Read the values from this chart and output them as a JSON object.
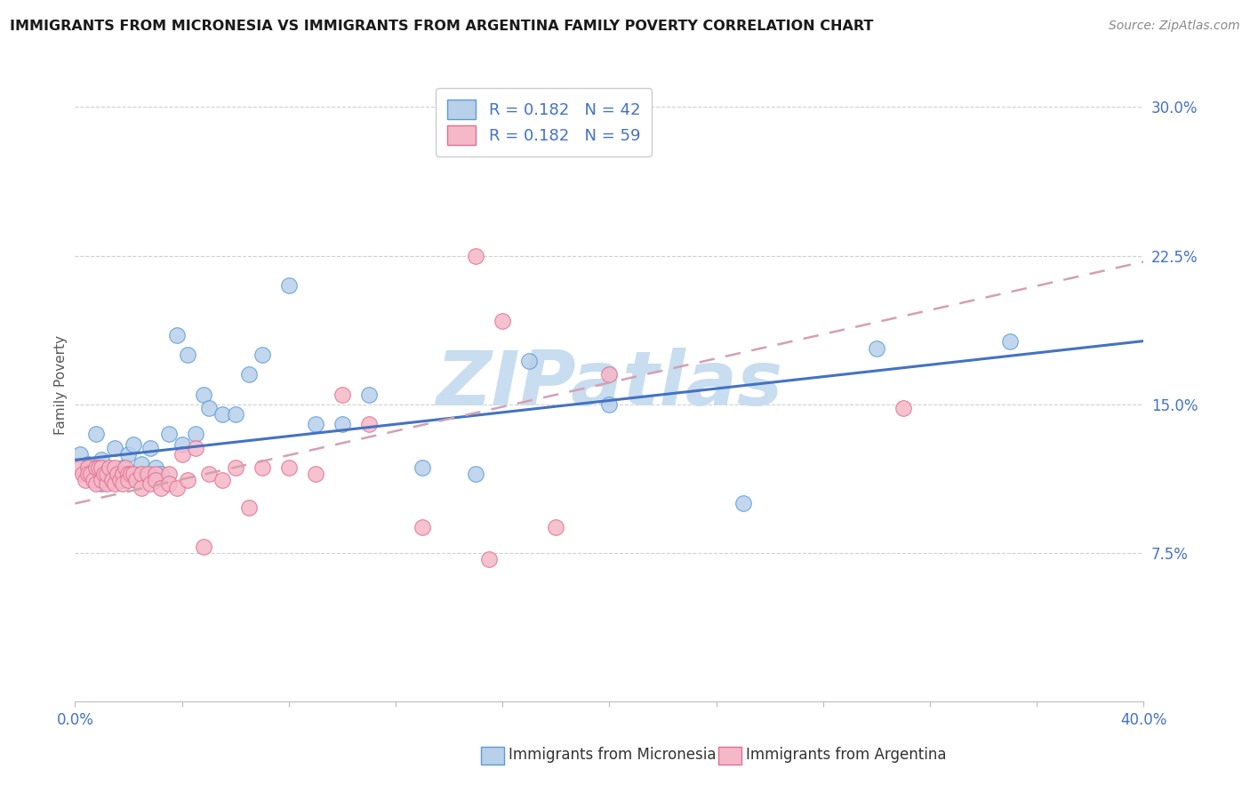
{
  "title": "IMMIGRANTS FROM MICRONESIA VS IMMIGRANTS FROM ARGENTINA FAMILY POVERTY CORRELATION CHART",
  "source": "Source: ZipAtlas.com",
  "ylabel": "Family Poverty",
  "xlim": [
    0.0,
    0.4
  ],
  "ylim": [
    0.0,
    0.32
  ],
  "ytick_vals": [
    0.075,
    0.15,
    0.225,
    0.3
  ],
  "ytick_labels": [
    "7.5%",
    "15.0%",
    "22.5%",
    "30.0%"
  ],
  "xtick_vals": [
    0.0,
    0.04,
    0.08,
    0.12,
    0.16,
    0.2,
    0.24,
    0.28,
    0.32,
    0.36,
    0.4
  ],
  "xtick_edge_labels": [
    "0.0%",
    "40.0%"
  ],
  "legend_r1": "R = 0.182",
  "legend_n1": "N = 42",
  "legend_r2": "R = 0.182",
  "legend_n2": "N = 59",
  "legend_label1": "Immigrants from Micronesia",
  "legend_label2": "Immigrants from Argentina",
  "color_micronesia_fill": "#b8d0ea",
  "color_micronesia_edge": "#5b9bd5",
  "color_argentina_fill": "#f5b8c8",
  "color_argentina_edge": "#e07090",
  "color_line_micronesia": "#4472c4",
  "color_line_argentina": "#d4a0b0",
  "watermark_color": "#c8ddef",
  "grid_color": "#d0d0d0",
  "background_color": "#ffffff",
  "title_color": "#1a1a1a",
  "source_color": "#888888",
  "axis_label_color": "#555555",
  "tick_label_color": "#4472c4",
  "mic_line_y0": 0.122,
  "mic_line_y1": 0.182,
  "arg_line_y0": 0.1,
  "arg_line_y1": 0.222,
  "mic_x": [
    0.002,
    0.005,
    0.008,
    0.008,
    0.01,
    0.01,
    0.012,
    0.015,
    0.015,
    0.018,
    0.018,
    0.02,
    0.02,
    0.022,
    0.025,
    0.025,
    0.028,
    0.028,
    0.03,
    0.032,
    0.035,
    0.038,
    0.04,
    0.042,
    0.045,
    0.048,
    0.05,
    0.055,
    0.06,
    0.065,
    0.07,
    0.08,
    0.09,
    0.1,
    0.11,
    0.13,
    0.15,
    0.17,
    0.2,
    0.25,
    0.3,
    0.35
  ],
  "mic_y": [
    0.125,
    0.12,
    0.118,
    0.135,
    0.11,
    0.122,
    0.115,
    0.128,
    0.115,
    0.112,
    0.118,
    0.125,
    0.115,
    0.13,
    0.115,
    0.12,
    0.115,
    0.128,
    0.118,
    0.115,
    0.135,
    0.185,
    0.13,
    0.175,
    0.135,
    0.155,
    0.148,
    0.145,
    0.145,
    0.165,
    0.175,
    0.21,
    0.14,
    0.14,
    0.155,
    0.118,
    0.115,
    0.172,
    0.15,
    0.1,
    0.178,
    0.182
  ],
  "arg_x": [
    0.002,
    0.003,
    0.004,
    0.005,
    0.005,
    0.006,
    0.007,
    0.008,
    0.008,
    0.009,
    0.01,
    0.01,
    0.011,
    0.012,
    0.012,
    0.013,
    0.014,
    0.015,
    0.015,
    0.016,
    0.017,
    0.018,
    0.018,
    0.019,
    0.02,
    0.02,
    0.021,
    0.022,
    0.023,
    0.025,
    0.025,
    0.027,
    0.028,
    0.03,
    0.03,
    0.032,
    0.035,
    0.035,
    0.038,
    0.04,
    0.042,
    0.045,
    0.048,
    0.05,
    0.055,
    0.06,
    0.065,
    0.07,
    0.08,
    0.09,
    0.1,
    0.11,
    0.13,
    0.15,
    0.16,
    0.18,
    0.2,
    0.31,
    0.155
  ],
  "arg_y": [
    0.118,
    0.115,
    0.112,
    0.118,
    0.115,
    0.115,
    0.112,
    0.11,
    0.118,
    0.118,
    0.118,
    0.112,
    0.115,
    0.11,
    0.115,
    0.118,
    0.112,
    0.118,
    0.11,
    0.115,
    0.112,
    0.115,
    0.11,
    0.118,
    0.115,
    0.112,
    0.115,
    0.115,
    0.112,
    0.115,
    0.108,
    0.115,
    0.11,
    0.115,
    0.112,
    0.108,
    0.115,
    0.11,
    0.108,
    0.125,
    0.112,
    0.128,
    0.078,
    0.115,
    0.112,
    0.118,
    0.098,
    0.118,
    0.118,
    0.115,
    0.155,
    0.14,
    0.088,
    0.225,
    0.192,
    0.088,
    0.165,
    0.148,
    0.072
  ]
}
